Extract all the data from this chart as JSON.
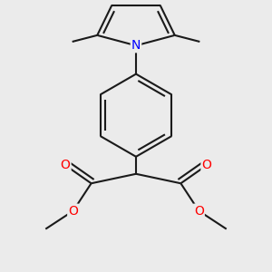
{
  "bg_color": "#ebebeb",
  "bond_color": "#1a1a1a",
  "N_color": "#0000ff",
  "O_color": "#ff0000",
  "line_width": 1.5,
  "figsize": [
    3.0,
    3.0
  ],
  "dpi": 100,
  "xlim": [
    -1.4,
    1.4
  ],
  "ylim": [
    -1.55,
    1.55
  ]
}
